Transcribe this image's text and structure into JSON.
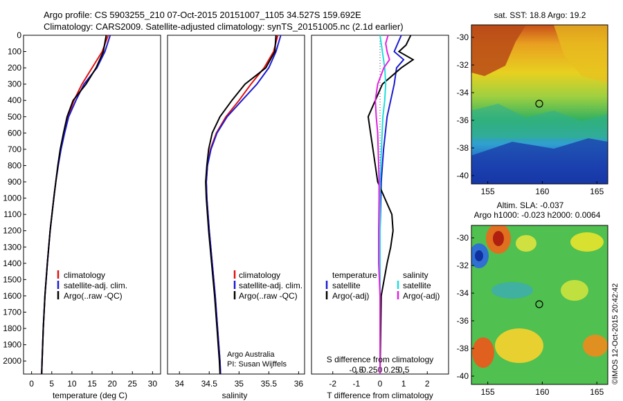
{
  "header": {
    "line1": "Argo profile: CS 5903255_210 07-Oct-2015 20151007_1105 34.527S 159.692E",
    "line2": "Climatology: CARS2009. Satellite-adjusted climatology: synTS_20151005.nc (2.1d earlier)"
  },
  "colors": {
    "climatology": "#e01010",
    "satellite": "#1a1ad0",
    "argo": "#000000",
    "sal_satellite": "#22dddd",
    "sal_argo": "#e020e0"
  },
  "chart_data": [
    {
      "type": "line",
      "name": "temperature-profile",
      "xlabel": "temperature (deg C)",
      "ylabel": "",
      "xlim": [
        -2,
        32
      ],
      "ylim": [
        2080,
        0
      ],
      "xticks": [
        0,
        5,
        10,
        15,
        20,
        25,
        30
      ],
      "yticks": [
        0,
        100,
        200,
        300,
        400,
        500,
        600,
        700,
        800,
        900,
        1000,
        1100,
        1200,
        1300,
        1400,
        1500,
        1600,
        1700,
        1800,
        1900,
        2000
      ],
      "legend": [
        "climatology",
        "satellite-adj. clim.",
        "Argo(..raw -QC)"
      ],
      "series": [
        {
          "name": "climatology",
          "depth": [
            0,
            100,
            200,
            300,
            400,
            500,
            600,
            700,
            800,
            900,
            1000,
            1200,
            1400,
            1600,
            1800,
            2000,
            2080
          ],
          "values": [
            19.0,
            17.5,
            15.0,
            12.5,
            10.5,
            9.0,
            8.0,
            7.2,
            6.6,
            6.0,
            5.5,
            4.6,
            3.9,
            3.3,
            2.9,
            2.6,
            2.5
          ]
        },
        {
          "name": "satellite-adj. clim.",
          "depth": [
            0,
            100,
            200,
            300,
            400,
            500,
            600,
            700,
            800,
            900,
            1000,
            1200,
            1400,
            1600,
            1800,
            2000,
            2080
          ],
          "values": [
            19.5,
            18.2,
            16.2,
            13.0,
            11.0,
            9.2,
            8.2,
            7.3,
            6.6,
            6.0,
            5.5,
            4.6,
            3.9,
            3.3,
            2.9,
            2.6,
            2.5
          ]
        },
        {
          "name": "Argo(..raw -QC)",
          "depth": [
            0,
            100,
            200,
            300,
            400,
            500,
            600,
            700,
            800,
            900,
            1000,
            1200,
            1400,
            1600,
            1800,
            2000,
            2080
          ],
          "values": [
            18.5,
            17.8,
            16.0,
            13.5,
            10.3,
            8.8,
            7.9,
            7.1,
            6.5,
            6.0,
            5.5,
            4.6,
            3.9,
            3.3,
            2.9,
            2.6,
            2.5
          ]
        }
      ]
    },
    {
      "type": "line",
      "name": "salinity-profile",
      "xlabel": "salinity",
      "xlim": [
        33.8,
        36.1
      ],
      "ylim": [
        2080,
        0
      ],
      "xticks": [
        34,
        34.5,
        35,
        35.5,
        36
      ],
      "legend": [
        "climatology",
        "satellite-adj. clim.",
        "Argo(..raw -QC)"
      ],
      "annotation": [
        "Argo Australia",
        "PI: Susan Wijffels"
      ],
      "series": [
        {
          "name": "climatology",
          "depth": [
            0,
            100,
            200,
            300,
            400,
            500,
            600,
            700,
            800,
            900,
            1000,
            1200,
            1400,
            1600,
            1800,
            2000,
            2080
          ],
          "values": [
            35.65,
            35.58,
            35.42,
            35.2,
            35.0,
            34.78,
            34.62,
            34.52,
            34.47,
            34.45,
            34.46,
            34.5,
            34.55,
            34.6,
            34.64,
            34.68,
            34.69
          ]
        },
        {
          "name": "satellite-adj. clim.",
          "depth": [
            0,
            100,
            200,
            300,
            400,
            500,
            600,
            700,
            800,
            900,
            1000,
            1200,
            1400,
            1600,
            1800,
            2000,
            2080
          ],
          "values": [
            35.7,
            35.62,
            35.5,
            35.3,
            35.05,
            34.8,
            34.63,
            34.53,
            34.47,
            34.45,
            34.46,
            34.5,
            34.55,
            34.6,
            34.64,
            34.68,
            34.69
          ]
        },
        {
          "name": "Argo(..raw -QC)",
          "depth": [
            0,
            100,
            200,
            300,
            400,
            500,
            600,
            700,
            800,
            900,
            1000,
            1200,
            1400,
            1600,
            1800,
            2000,
            2080
          ],
          "values": [
            35.62,
            35.6,
            35.45,
            35.1,
            34.88,
            34.68,
            34.55,
            34.49,
            34.46,
            34.44,
            34.45,
            34.49,
            34.54,
            34.59,
            34.63,
            34.67,
            34.68
          ]
        }
      ]
    },
    {
      "type": "line",
      "name": "difference-profile",
      "xlabel": "T difference from climatology",
      "xlabel_top": "S difference from climatology",
      "xlim": [
        -2.9,
        2.9
      ],
      "ylim": [
        2080,
        0
      ],
      "xticks": [
        -2,
        -1,
        0,
        1,
        2
      ],
      "xticks_salinity": [
        "-0.5",
        "-0.25",
        "0",
        "0.25",
        "0.5"
      ],
      "legend_temperature": {
        "title": "temperature",
        "items": [
          "satellite",
          "Argo(-adj)"
        ]
      },
      "legend_salinity": {
        "title": "salinity",
        "items": [
          "satellite",
          "Argo(-adj)"
        ]
      },
      "series": [
        {
          "name": "T satellite",
          "depth": [
            0,
            100,
            150,
            200,
            300,
            400,
            500,
            700,
            900,
            1200,
            1600,
            2080
          ],
          "values": [
            0.9,
            0.6,
            1.0,
            0.7,
            0.6,
            0.45,
            0.3,
            0.15,
            0.05,
            0.0,
            0.0,
            0.0
          ]
        },
        {
          "name": "T Argo(-adj)",
          "depth": [
            0,
            60,
            100,
            150,
            200,
            300,
            400,
            500,
            600,
            700,
            800,
            900,
            1000,
            1100,
            1200,
            1300,
            1400,
            1600,
            2080
          ],
          "values": [
            1.3,
            1.1,
            0.8,
            1.4,
            0.9,
            0.1,
            -0.2,
            -0.5,
            -0.4,
            -0.3,
            -0.2,
            -0.1,
            0.2,
            0.5,
            0.55,
            0.45,
            0.3,
            0.05,
            0.0
          ]
        },
        {
          "name": "S satellite",
          "depth": [
            0,
            100,
            200,
            300,
            400,
            500,
            700,
            900,
            1200,
            1600,
            2080
          ],
          "values": [
            0.0,
            0.05,
            0.1,
            0.12,
            0.1,
            0.06,
            0.03,
            0.0,
            0.0,
            0.0,
            0.0
          ]
        },
        {
          "name": "S Argo(-adj)",
          "depth": [
            0,
            50,
            100,
            150,
            200,
            300,
            400,
            500,
            600,
            700,
            800,
            900,
            1000,
            1200,
            1400,
            1600,
            2080
          ],
          "values": [
            0.17,
            0.12,
            0.15,
            0.2,
            0.08,
            -0.05,
            -0.1,
            -0.08,
            -0.05,
            -0.04,
            -0.03,
            -0.02,
            -0.02,
            -0.03,
            -0.03,
            0.0,
            0.0
          ]
        }
      ]
    },
    {
      "type": "heatmap",
      "name": "sst-map",
      "title": "sat. SST: 18.8  Argo: 19.2",
      "xlim": [
        153.5,
        166.0
      ],
      "ylim": [
        -40.6,
        -29.1
      ],
      "xticks": [
        155,
        160,
        165
      ],
      "yticks": [
        -30,
        -32,
        -34,
        -36,
        -38,
        -40
      ],
      "marker": {
        "lon": 159.7,
        "lat": -34.53
      }
    },
    {
      "type": "heatmap",
      "name": "sla-map",
      "title": "Altim. SLA: -0.037",
      "subtitle": "Argo h1000: -0.023 h2000: 0.0064",
      "xlim": [
        153.5,
        166.0
      ],
      "ylim": [
        -40.6,
        -29.1
      ],
      "xticks": [
        155,
        160,
        165
      ],
      "yticks": [
        -30,
        -32,
        -34,
        -36,
        -38,
        -40
      ],
      "marker": {
        "lon": 159.7,
        "lat": -34.53
      }
    }
  ],
  "footer": {
    "stamp": "©IMOS 12-Oct-2015 20:42:42"
  }
}
